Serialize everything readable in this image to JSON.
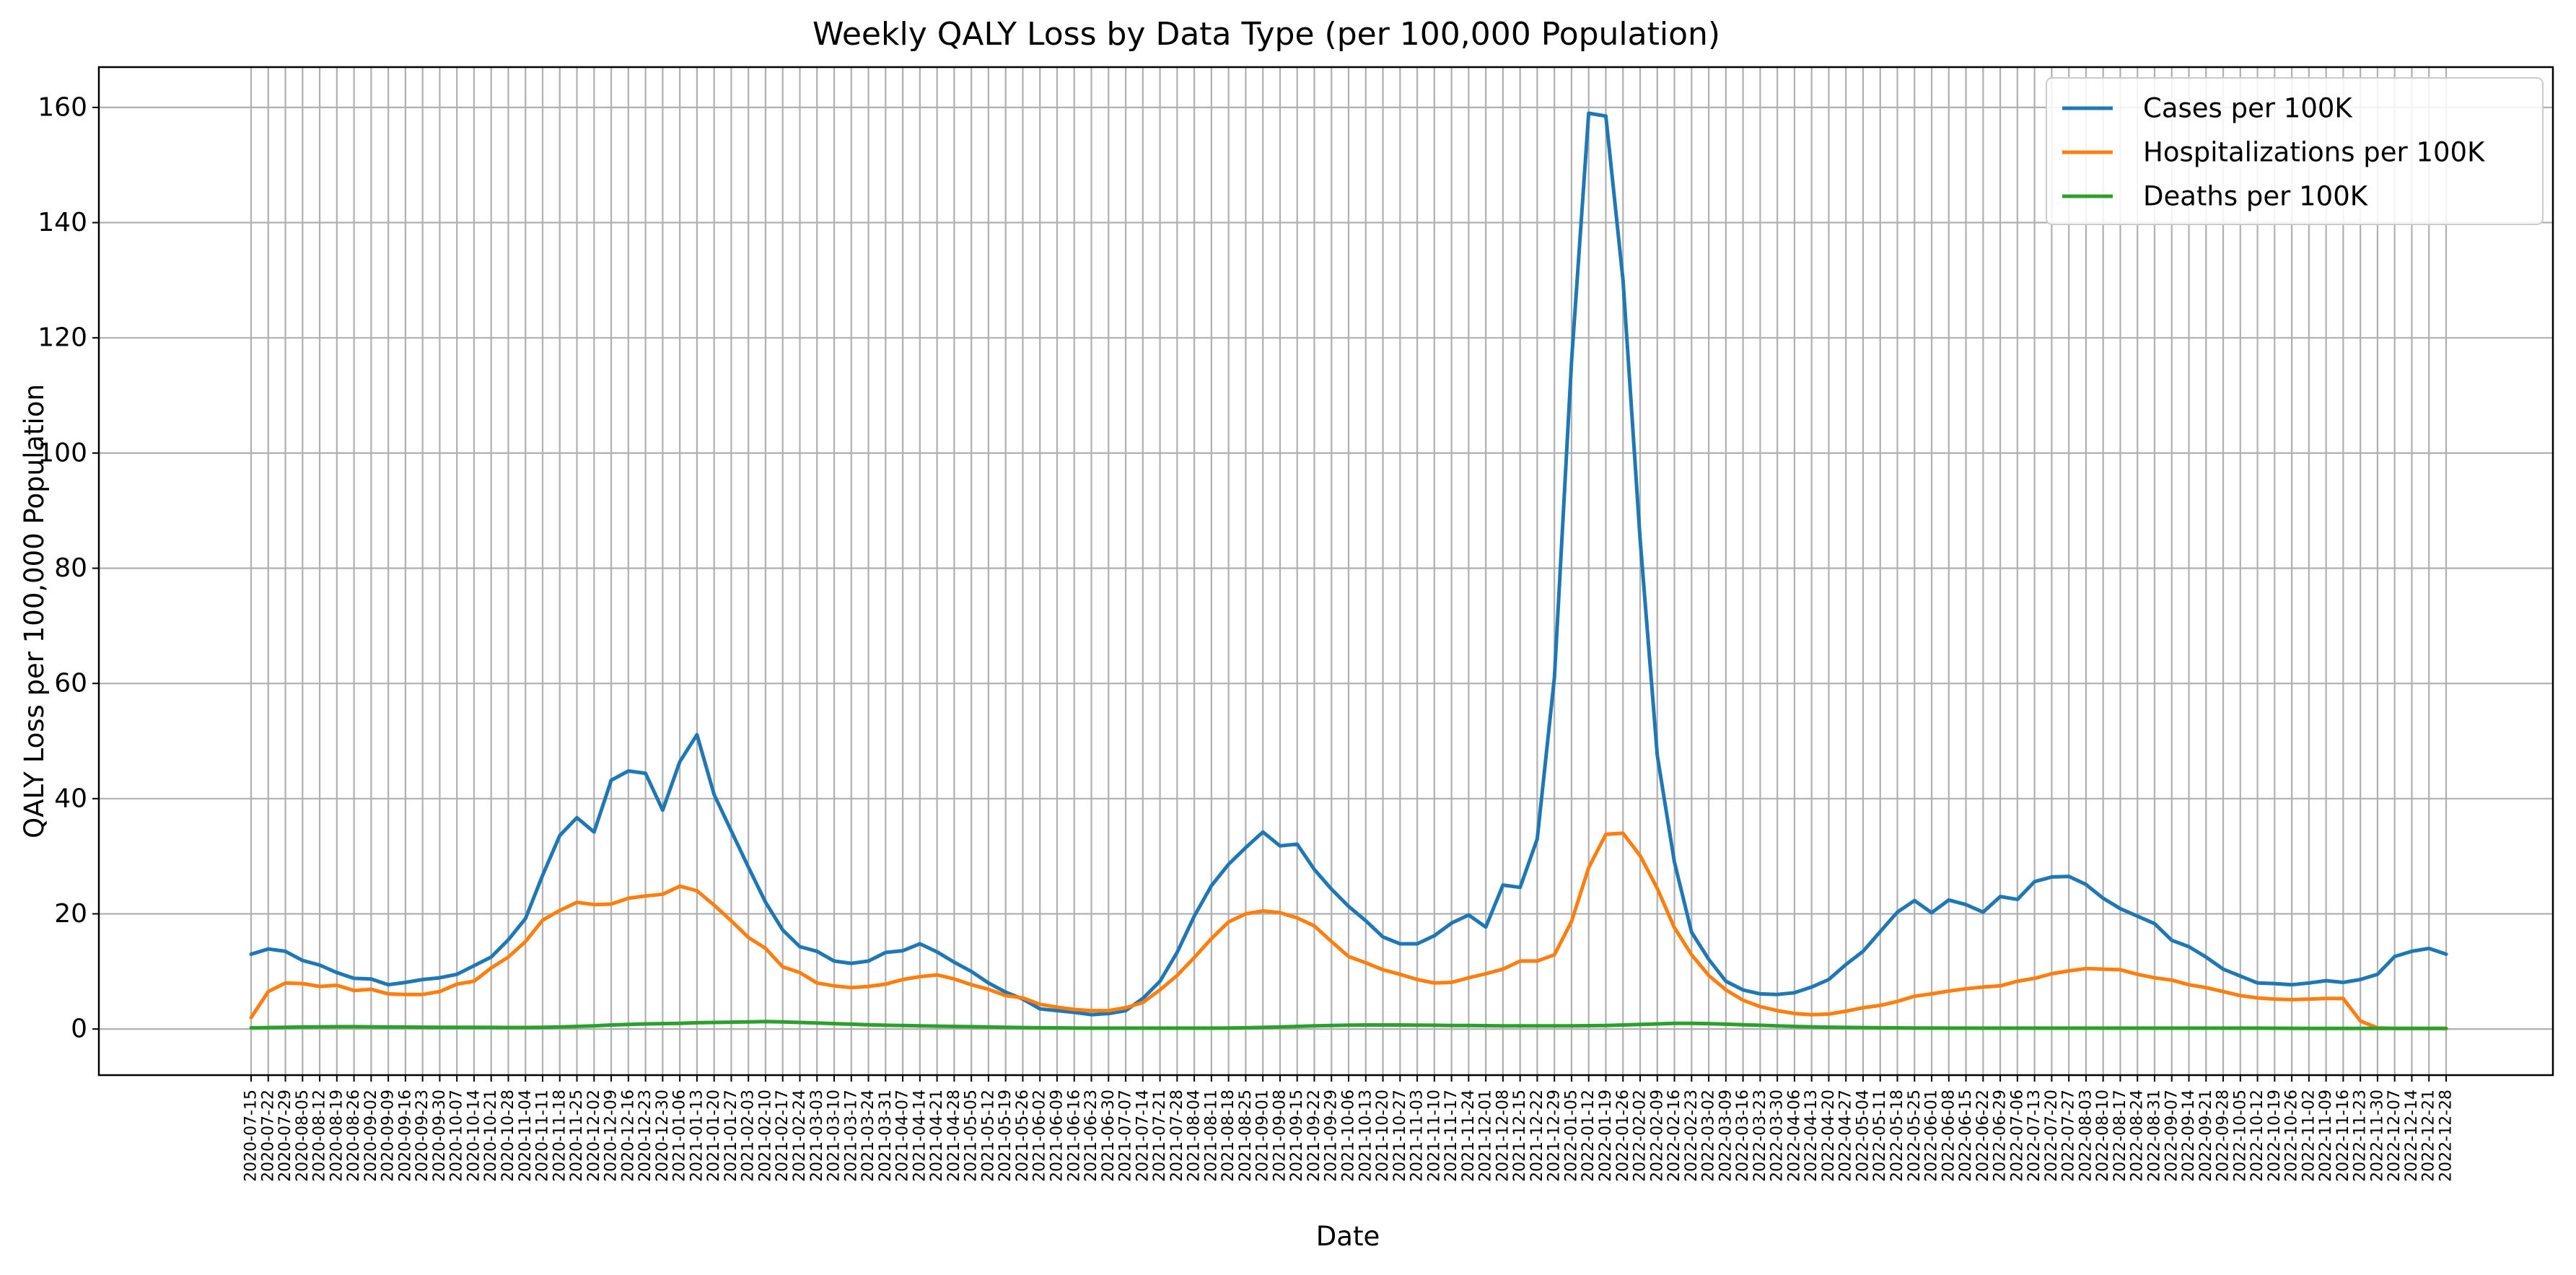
{
  "chart_data": {
    "type": "line",
    "title": "Weekly QALY Loss by Data Type (per 100,000 Population)",
    "xlabel": "Date",
    "ylabel": "QALY Loss per 100,000 Population",
    "ylim": [
      -8,
      167
    ],
    "yticks": [
      0,
      20,
      40,
      60,
      80,
      100,
      120,
      140,
      160
    ],
    "grid": true,
    "legend_position": "top-right",
    "categories": [
      "2020-07-15",
      "2020-07-22",
      "2020-07-29",
      "2020-08-05",
      "2020-08-12",
      "2020-08-19",
      "2020-08-26",
      "2020-09-02",
      "2020-09-09",
      "2020-09-16",
      "2020-09-23",
      "2020-09-30",
      "2020-10-07",
      "2020-10-14",
      "2020-10-21",
      "2020-10-28",
      "2020-11-04",
      "2020-11-11",
      "2020-11-18",
      "2020-11-25",
      "2020-12-02",
      "2020-12-09",
      "2020-12-16",
      "2020-12-23",
      "2020-12-30",
      "2021-01-06",
      "2021-01-13",
      "2021-01-20",
      "2021-01-27",
      "2021-02-03",
      "2021-02-10",
      "2021-02-17",
      "2021-02-24",
      "2021-03-03",
      "2021-03-10",
      "2021-03-17",
      "2021-03-24",
      "2021-03-31",
      "2021-04-07",
      "2021-04-14",
      "2021-04-21",
      "2021-04-28",
      "2021-05-05",
      "2021-05-12",
      "2021-05-19",
      "2021-05-26",
      "2021-06-02",
      "2021-06-09",
      "2021-06-16",
      "2021-06-23",
      "2021-06-30",
      "2021-07-07",
      "2021-07-14",
      "2021-07-21",
      "2021-07-28",
      "2021-08-04",
      "2021-08-11",
      "2021-08-18",
      "2021-08-25",
      "2021-09-01",
      "2021-09-08",
      "2021-09-15",
      "2021-09-22",
      "2021-09-29",
      "2021-10-06",
      "2021-10-13",
      "2021-10-20",
      "2021-10-27",
      "2021-11-03",
      "2021-11-10",
      "2021-11-17",
      "2021-11-24",
      "2021-12-01",
      "2021-12-08",
      "2021-12-15",
      "2021-12-22",
      "2021-12-29",
      "2022-01-05",
      "2022-01-12",
      "2022-01-19",
      "2022-01-26",
      "2022-02-02",
      "2022-02-09",
      "2022-02-16",
      "2022-02-23",
      "2022-03-02",
      "2022-03-09",
      "2022-03-16",
      "2022-03-23",
      "2022-03-30",
      "2022-04-06",
      "2022-04-13",
      "2022-04-20",
      "2022-04-27",
      "2022-05-04",
      "2022-05-11",
      "2022-05-18",
      "2022-05-25",
      "2022-06-01",
      "2022-06-08",
      "2022-06-15",
      "2022-06-22",
      "2022-06-29",
      "2022-07-06",
      "2022-07-13",
      "2022-07-20",
      "2022-07-27",
      "2022-08-03",
      "2022-08-10",
      "2022-08-17",
      "2022-08-24",
      "2022-08-31",
      "2022-09-07",
      "2022-09-14",
      "2022-09-21",
      "2022-09-28",
      "2022-10-05",
      "2022-10-12",
      "2022-10-19",
      "2022-10-26",
      "2022-11-02",
      "2022-11-09",
      "2022-11-16",
      "2022-11-23",
      "2022-11-30",
      "2022-12-07",
      "2022-12-14",
      "2022-12-21",
      "2022-12-28"
    ],
    "series": [
      {
        "name": "Cases per 100K",
        "color": "#1f77b4",
        "values": [
          13.0,
          13.9,
          13.5,
          11.9,
          11.1,
          9.8,
          8.8,
          8.7,
          7.7,
          8.1,
          8.6,
          8.9,
          9.5,
          11.0,
          12.5,
          15.5,
          19.2,
          26.7,
          33.6,
          36.7,
          34.2,
          43.2,
          44.8,
          44.4,
          38.0,
          46.4,
          51.1,
          40.7,
          34.4,
          28.1,
          22.0,
          17.2,
          14.3,
          13.5,
          11.8,
          11.4,
          11.8,
          13.3,
          13.6,
          14.8,
          13.4,
          11.6,
          10.0,
          8.0,
          6.4,
          5.2,
          3.5,
          3.2,
          2.9,
          2.5,
          2.7,
          3.2,
          5.3,
          8.3,
          13.3,
          19.6,
          24.9,
          28.6,
          31.5,
          34.2,
          31.8,
          32.1,
          27.7,
          24.3,
          21.3,
          18.8,
          16.0,
          14.8,
          14.8,
          16.2,
          18.4,
          19.8,
          17.7,
          25.0,
          24.6,
          33.0,
          61.0,
          116.0,
          159.0,
          158.5,
          130.0,
          85.0,
          47.5,
          29.0,
          16.8,
          12.1,
          8.3,
          6.8,
          6.1,
          6.0,
          6.3,
          7.3,
          8.6,
          11.2,
          13.5,
          16.9,
          20.3,
          22.3,
          20.2,
          22.4,
          21.6,
          20.3,
          23.0,
          22.5,
          25.6,
          26.4,
          26.5,
          25.1,
          22.7,
          20.9,
          19.6,
          18.3,
          15.4,
          14.3,
          12.5,
          10.4,
          9.2,
          8.0,
          7.9,
          7.7,
          8.0,
          8.4,
          8.1,
          8.6,
          9.5,
          12.6,
          13.5,
          14.0,
          13.0
        ]
      },
      {
        "name": "Hospitalizations per 100K",
        "color": "#ff7f0e",
        "values": [
          2.0,
          6.5,
          8.0,
          7.9,
          7.4,
          7.6,
          6.7,
          6.9,
          6.1,
          6.0,
          6.0,
          6.5,
          7.8,
          8.3,
          10.6,
          12.5,
          15.2,
          18.9,
          20.6,
          22.0,
          21.6,
          21.7,
          22.7,
          23.1,
          23.4,
          24.8,
          24.0,
          21.5,
          18.8,
          15.9,
          14.0,
          10.8,
          9.8,
          8.0,
          7.5,
          7.2,
          7.4,
          7.8,
          8.6,
          9.1,
          9.4,
          8.7,
          7.7,
          6.9,
          5.8,
          5.4,
          4.3,
          3.8,
          3.4,
          3.2,
          3.2,
          3.7,
          4.6,
          6.8,
          9.3,
          12.4,
          15.7,
          18.6,
          20.0,
          20.5,
          20.2,
          19.3,
          17.9,
          15.2,
          12.6,
          11.5,
          10.3,
          9.5,
          8.6,
          8.0,
          8.1,
          8.9,
          9.6,
          10.4,
          11.8,
          11.8,
          12.9,
          18.7,
          28.0,
          33.8,
          34.0,
          30.1,
          24.4,
          17.6,
          12.9,
          9.3,
          6.8,
          5.0,
          3.9,
          3.2,
          2.7,
          2.5,
          2.6,
          3.1,
          3.7,
          4.1,
          4.8,
          5.7,
          6.1,
          6.6,
          7.0,
          7.3,
          7.5,
          8.3,
          8.8,
          9.6,
          10.1,
          10.5,
          10.4,
          10.3,
          9.5,
          8.9,
          8.5,
          7.7,
          7.2,
          6.5,
          5.8,
          5.4,
          5.2,
          5.1,
          5.2,
          5.3,
          5.3,
          1.4,
          0.2,
          0.1,
          0.1,
          0.1,
          0.1
        ]
      },
      {
        "name": "Deaths per 100K",
        "color": "#2ca02c",
        "values": [
          0.2,
          0.25,
          0.3,
          0.35,
          0.38,
          0.4,
          0.4,
          0.38,
          0.36,
          0.34,
          0.32,
          0.3,
          0.3,
          0.3,
          0.28,
          0.27,
          0.27,
          0.3,
          0.35,
          0.45,
          0.55,
          0.7,
          0.8,
          0.9,
          0.95,
          1.0,
          1.1,
          1.15,
          1.2,
          1.25,
          1.3,
          1.25,
          1.15,
          1.05,
          0.95,
          0.85,
          0.75,
          0.65,
          0.6,
          0.55,
          0.5,
          0.45,
          0.4,
          0.35,
          0.3,
          0.25,
          0.22,
          0.2,
          0.18,
          0.16,
          0.15,
          0.15,
          0.15,
          0.15,
          0.15,
          0.15,
          0.15,
          0.18,
          0.22,
          0.28,
          0.35,
          0.45,
          0.55,
          0.62,
          0.68,
          0.7,
          0.7,
          0.7,
          0.68,
          0.65,
          0.62,
          0.6,
          0.58,
          0.55,
          0.55,
          0.55,
          0.55,
          0.55,
          0.58,
          0.62,
          0.7,
          0.8,
          0.9,
          1.0,
          1.0,
          0.95,
          0.85,
          0.75,
          0.65,
          0.55,
          0.45,
          0.38,
          0.32,
          0.28,
          0.25,
          0.22,
          0.2,
          0.18,
          0.17,
          0.16,
          0.15,
          0.15,
          0.15,
          0.15,
          0.15,
          0.15,
          0.15,
          0.15,
          0.15,
          0.15,
          0.15,
          0.15,
          0.15,
          0.15,
          0.15,
          0.15,
          0.15,
          0.15,
          0.14,
          0.13,
          0.12,
          0.11,
          0.1,
          0.1,
          0.1,
          0.1,
          0.1,
          0.1,
          0.1
        ]
      }
    ]
  }
}
